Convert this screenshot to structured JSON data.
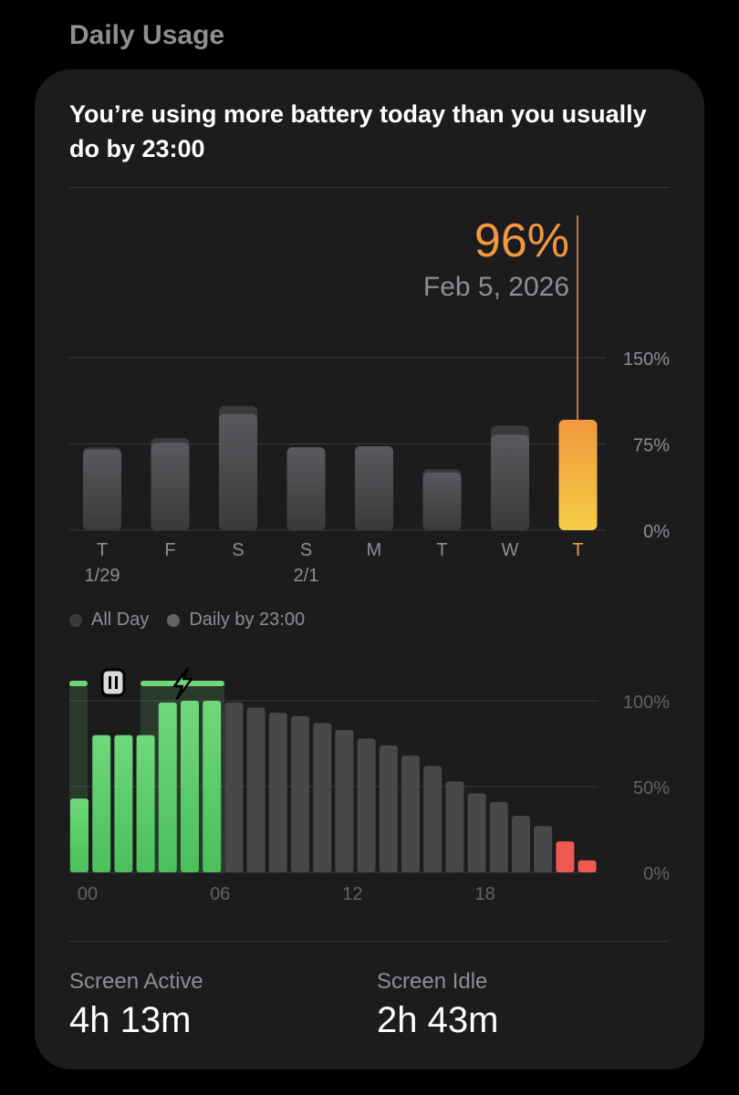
{
  "section_title": "Daily Usage",
  "card": {
    "headline": "You’re using more battery today than you usually do by 23:00"
  },
  "weekly": {
    "selected": {
      "value": "96%",
      "date": "Feb 5, 2026"
    },
    "y_ticks": [
      "150%",
      "75%",
      "0%"
    ],
    "days": [
      {
        "label": "T",
        "sub": "1/29",
        "all_day": 72,
        "by_23": 70
      },
      {
        "label": "F",
        "sub": "",
        "all_day": 80,
        "by_23": 76
      },
      {
        "label": "S",
        "sub": "",
        "all_day": 108,
        "by_23": 101
      },
      {
        "label": "S",
        "sub": "2/1",
        "all_day": 72,
        "by_23": 72
      },
      {
        "label": "M",
        "sub": "",
        "all_day": 73,
        "by_23": 73
      },
      {
        "label": "T",
        "sub": "",
        "all_day": 53,
        "by_23": 50
      },
      {
        "label": "W",
        "sub": "",
        "all_day": 91,
        "by_23": 83
      },
      {
        "label": "T",
        "sub": "",
        "all_day": 96,
        "by_23": 96,
        "selected": true
      }
    ],
    "legend": [
      {
        "label": "All Day",
        "color": "#3a3a3c"
      },
      {
        "label": "Daily by 23:00",
        "color": "#636366"
      }
    ]
  },
  "hourly": {
    "y_ticks": [
      "100%",
      "50%",
      "0%"
    ],
    "x_ticks": [
      "00",
      "06",
      "12",
      "18"
    ],
    "levels": [
      43,
      80,
      80,
      80,
      99,
      100,
      100,
      99,
      96,
      93,
      91,
      87,
      83,
      78,
      74,
      68,
      62,
      53,
      46,
      41,
      33,
      27,
      18,
      7
    ],
    "charging_hours": [
      0,
      1,
      2,
      3,
      4,
      5,
      6
    ],
    "low_threshold": 20,
    "colors": {
      "charging": "#6fd87a",
      "normal": "#48484a",
      "low": "#ef5a50",
      "accent": "#f0993e"
    }
  },
  "stats": {
    "screen_active": {
      "label": "Screen Active",
      "value": "4h 13m"
    },
    "screen_idle": {
      "label": "Screen Idle",
      "value": "2h 43m"
    }
  }
}
